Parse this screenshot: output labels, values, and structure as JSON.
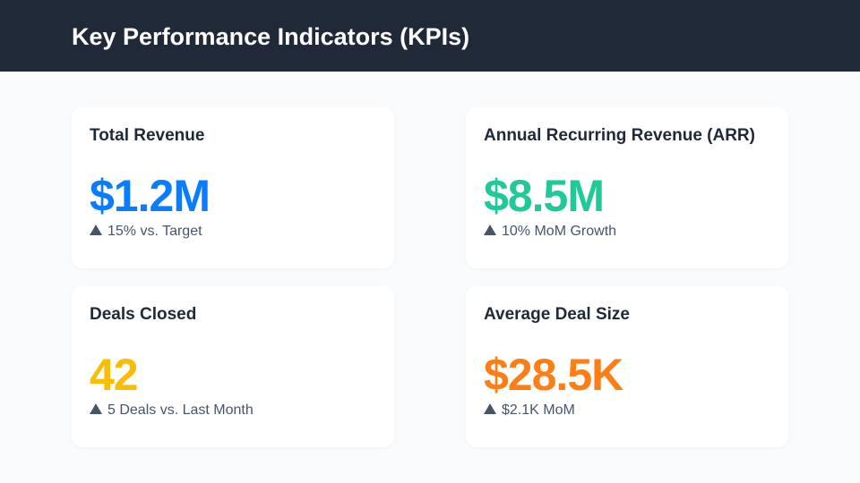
{
  "header": {
    "title": "Key Performance Indicators (KPIs)"
  },
  "cards": [
    {
      "title": "Total Revenue",
      "value": "$1.2M",
      "color": "#0a7cff",
      "icon": "triangle-up-icon",
      "note": "15% vs. Target"
    },
    {
      "title": "Annual Recurring Revenue (ARR)",
      "value": "$8.5M",
      "color": "#20c997",
      "icon": "triangle-up-icon",
      "note": "10% MoM Growth"
    },
    {
      "title": "Deals Closed",
      "value": "42",
      "color": "#fbbc05",
      "icon": "triangle-up-icon",
      "note": "5 Deals vs. Last Month"
    },
    {
      "title": "Average Deal Size",
      "value": "$28.5K",
      "color": "#fd7e14",
      "icon": "triangle-up-icon",
      "note": "$2.1K MoM"
    }
  ]
}
